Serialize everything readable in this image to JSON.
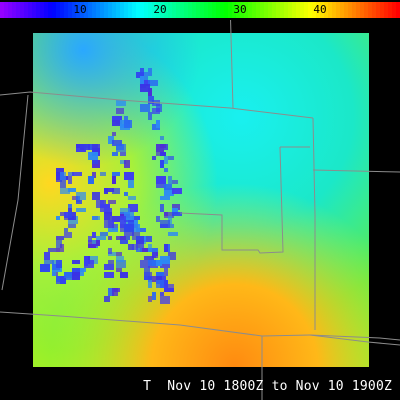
{
  "colorbar": {
    "min": 0,
    "max": 50,
    "tick_values": [
      10,
      20,
      30,
      40
    ],
    "tick_labels": [
      "10",
      "20",
      "30",
      "40"
    ]
  },
  "caption": {
    "variable": "T",
    "time_range": "Nov 10 1800Z to Nov 10 1900Z"
  },
  "colors": {
    "background": "#000000",
    "boundary_lines": "#8c8c8c",
    "caption_text": "#ffffff"
  }
}
